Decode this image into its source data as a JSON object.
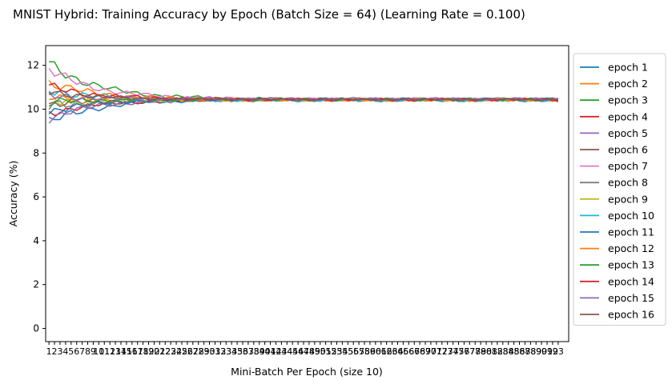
{
  "chart_data": {
    "type": "line",
    "title": "MNIST Hybrid: Training Accuracy by Epoch (Batch Size = 64) (Learning Rate = 0.100)",
    "xlabel": "Mini-Batch Per Epoch (size 10)",
    "ylabel": "Accuracy (%)",
    "xlim": [
      0.4,
      94.9
    ],
    "ylim": [
      -0.6,
      12.9
    ],
    "yticks": [
      0,
      2,
      4,
      6,
      8,
      10,
      12
    ],
    "x_categories_count": 93,
    "grid": false,
    "legend_position": "outside-right",
    "colors": [
      "#1f77b4",
      "#ff7f0e",
      "#2ca02c",
      "#d62728",
      "#9467bd",
      "#8c564b",
      "#e377c2",
      "#7f7f7f",
      "#bcbd22",
      "#17becf",
      "#1f77b4",
      "#ff7f0e",
      "#2ca02c",
      "#d62728",
      "#9467bd",
      "#8c564b"
    ],
    "series": [
      {
        "name": "epoch 1",
        "start": 9.4,
        "end": 10.45,
        "amp": 0.5
      },
      {
        "name": "epoch 2",
        "start": 10.5,
        "end": 10.42,
        "amp": 0.45
      },
      {
        "name": "epoch 3",
        "start": 12.1,
        "end": 10.44,
        "amp": 0.6
      },
      {
        "name": "epoch 4",
        "start": 9.8,
        "end": 10.43,
        "amp": 0.4
      },
      {
        "name": "epoch 5",
        "start": 9.6,
        "end": 10.46,
        "amp": 0.45
      },
      {
        "name": "epoch 6",
        "start": 10.2,
        "end": 10.44,
        "amp": 0.5
      },
      {
        "name": "epoch 7",
        "start": 11.8,
        "end": 10.45,
        "amp": 0.55
      },
      {
        "name": "epoch 8",
        "start": 10.1,
        "end": 10.42,
        "amp": 0.6
      },
      {
        "name": "epoch 9",
        "start": 10.4,
        "end": 10.44,
        "amp": 0.7
      },
      {
        "name": "epoch 10",
        "start": 10.9,
        "end": 10.4,
        "amp": 0.55
      },
      {
        "name": "epoch 11",
        "start": 9.9,
        "end": 10.46,
        "amp": 0.4
      },
      {
        "name": "epoch 12",
        "start": 11.2,
        "end": 10.43,
        "amp": 0.5
      },
      {
        "name": "epoch 13",
        "start": 10.3,
        "end": 10.45,
        "amp": 0.45
      },
      {
        "name": "epoch 14",
        "start": 11.0,
        "end": 10.44,
        "amp": 0.5
      },
      {
        "name": "epoch 15",
        "start": 10.6,
        "end": 10.47,
        "amp": 0.45
      },
      {
        "name": "epoch 16",
        "start": 10.8,
        "end": 10.44,
        "amp": 0.4
      }
    ]
  }
}
